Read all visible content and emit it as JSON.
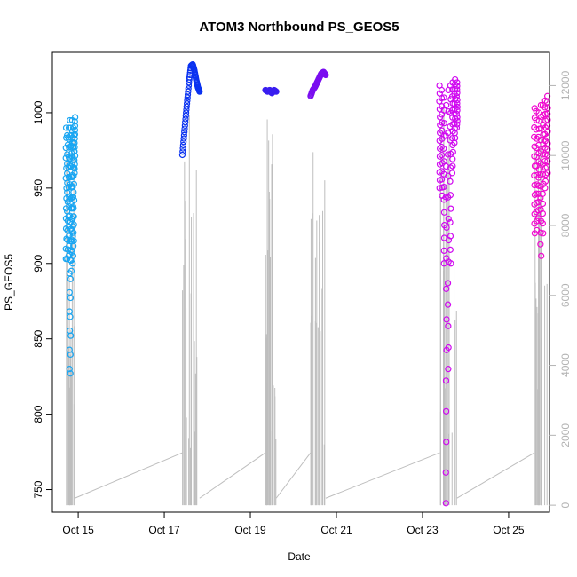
{
  "chart_data": {
    "type": "scatter",
    "title": "ATOM3 Northbound PS_GEOS5",
    "xlabel": "Date",
    "ylabel": "PS_GEOS5",
    "x_range_days": [
      14.4,
      25.95
    ],
    "ylim": [
      735,
      1040
    ],
    "y2lim": [
      -200,
      12950
    ],
    "x_ticks": [
      {
        "label": "Oct 15",
        "day": 15
      },
      {
        "label": "Oct 17",
        "day": 17
      },
      {
        "label": "Oct 19",
        "day": 19
      },
      {
        "label": "Oct 21",
        "day": 21
      },
      {
        "label": "Oct 23",
        "day": 23
      },
      {
        "label": "Oct 25",
        "day": 25
      }
    ],
    "y_ticks": [
      750,
      800,
      850,
      900,
      950,
      1000
    ],
    "y2_ticks": [
      0,
      2000,
      4000,
      6000,
      8000,
      10000,
      12000
    ],
    "altitude_color": "#bebebe",
    "series": [
      {
        "segment": "oct14-15",
        "color": "#1aa6f2",
        "x": [
          14.72,
          14.75,
          14.78,
          14.8,
          14.82,
          14.84,
          14.86,
          14.88,
          14.9,
          14.92
        ],
        "y_min": [
          903,
          903,
          905,
          830,
          827,
          895,
          900,
          905,
          915,
          960
        ],
        "y_max": [
          990,
          985,
          990,
          995,
          990,
          985,
          995,
          990,
          985,
          997
        ]
      },
      {
        "segment": "oct17",
        "color": "#0a32f0",
        "x": [
          17.42,
          17.46,
          17.5,
          17.54,
          17.58,
          17.62,
          17.66,
          17.7,
          17.74,
          17.78,
          17.82
        ],
        "y": [
          972,
          985,
          998,
          1010,
          1022,
          1031,
          1032,
          1028,
          1022,
          1017,
          1014
        ]
      },
      {
        "segment": "oct19",
        "color": "#3a1ef0",
        "x": [
          19.35,
          19.4,
          19.45,
          19.5,
          19.55,
          19.6
        ],
        "y": [
          1015,
          1014,
          1015,
          1013,
          1015,
          1014
        ]
      },
      {
        "segment": "oct20-21",
        "color": "#7a0ef0",
        "x": [
          20.4,
          20.45,
          20.5,
          20.55,
          20.6,
          20.65,
          20.7,
          20.75
        ],
        "y": [
          1011,
          1015,
          1017,
          1020,
          1023,
          1026,
          1027,
          1025
        ]
      },
      {
        "segment": "oct23",
        "color": "#d00af0",
        "x": [
          23.4,
          23.45,
          23.5,
          23.55,
          23.6,
          23.65,
          23.7,
          23.75,
          23.8
        ],
        "y_min": [
          950,
          945,
          900,
          741,
          830,
          900,
          960,
          980,
          990
        ],
        "y_max": [
          1018,
          1015,
          1010,
          1005,
          1015,
          1018,
          1020,
          1022,
          1020
        ]
      },
      {
        "segment": "oct25",
        "color": "#f00ad0",
        "x": [
          25.6,
          25.65,
          25.7,
          25.75,
          25.8,
          25.85,
          25.9
        ],
        "y_min": [
          920,
          922,
          930,
          905,
          920,
          950,
          960
        ],
        "y_max": [
          1003,
          1001,
          1000,
          1005,
          1005,
          1008,
          1011
        ]
      }
    ]
  }
}
